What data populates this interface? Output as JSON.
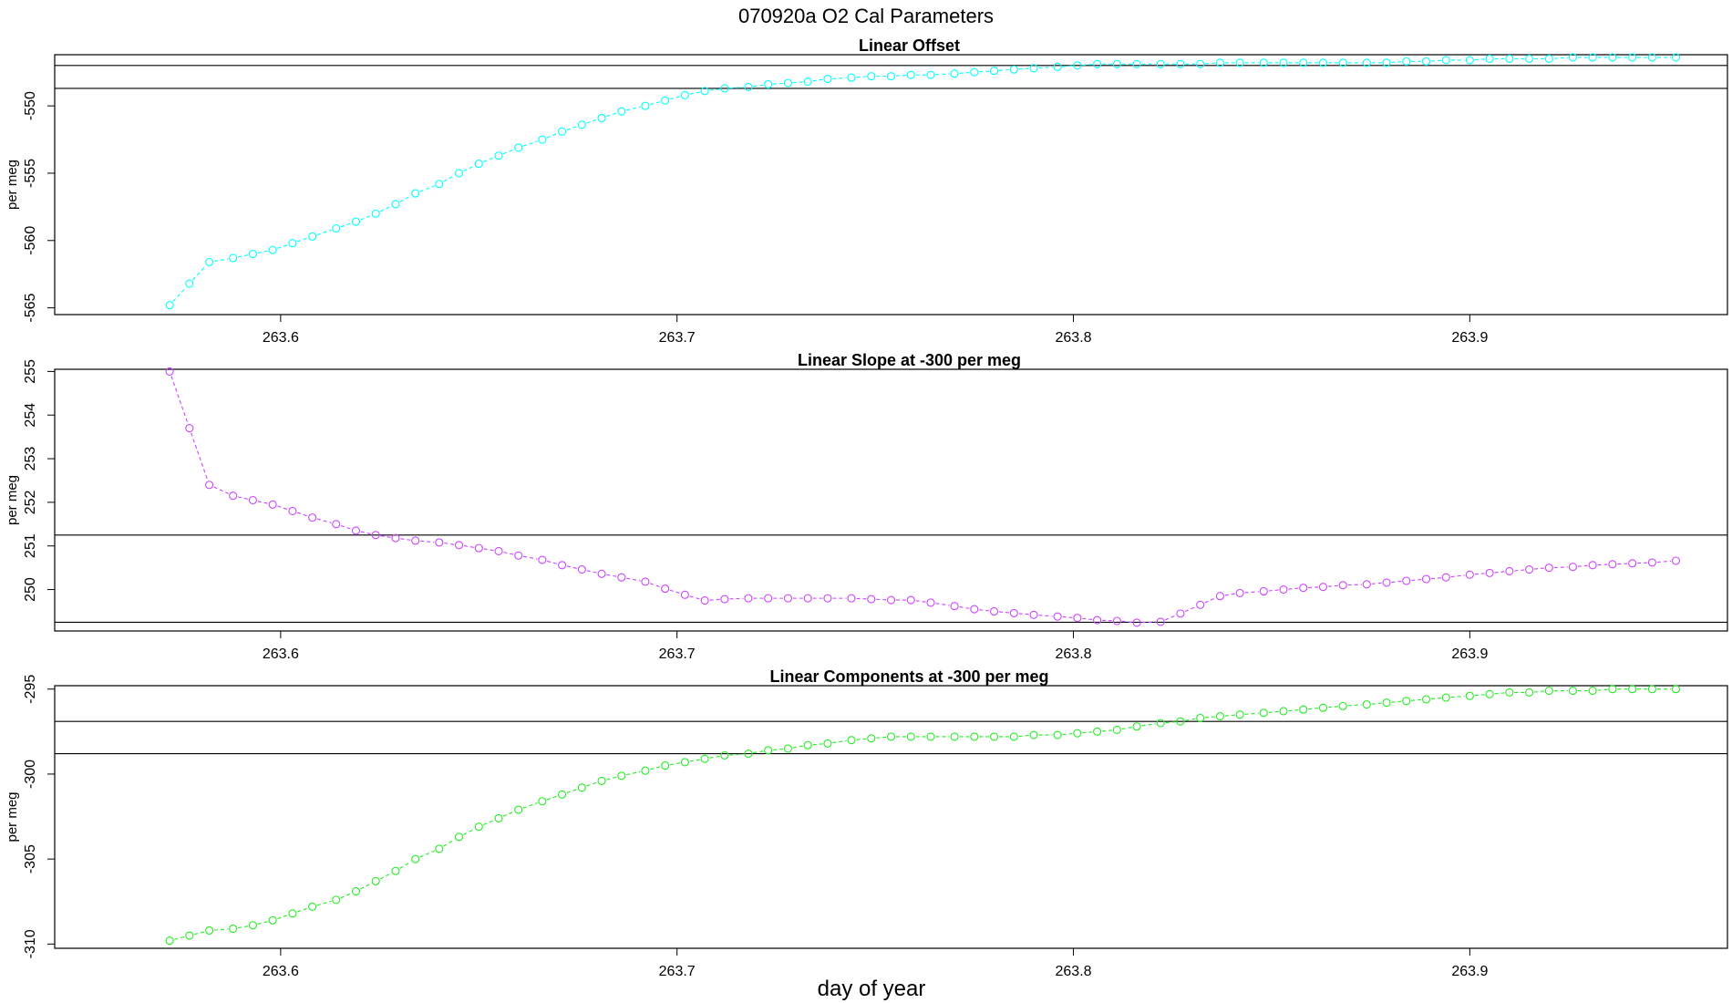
{
  "figure": {
    "title": "070920a   O2 Cal Parameters",
    "xlabel": "day of year"
  },
  "chart_data": [
    {
      "type": "line",
      "title": "Linear Offset",
      "ylabel": "per meg",
      "xlim": [
        263.543,
        263.965
      ],
      "ylim": [
        -565.5,
        -546.2
      ],
      "xticks": [
        "263.6",
        "263.7",
        "263.8",
        "263.9"
      ],
      "xtick_values": [
        263.6,
        263.7,
        263.8,
        263.9
      ],
      "yticks": [
        "-565",
        "-560",
        "-555",
        "-550"
      ],
      "ytick_values": [
        -565,
        -560,
        -555,
        -550
      ],
      "hlines": [
        -547.0,
        -548.7
      ],
      "color": "#00ffff",
      "x": [
        263.572,
        263.577,
        263.582,
        263.588,
        263.593,
        263.598,
        263.603,
        263.608,
        263.614,
        263.619,
        263.624,
        263.629,
        263.634,
        263.64,
        263.645,
        263.65,
        263.655,
        263.66,
        263.666,
        263.671,
        263.676,
        263.681,
        263.686,
        263.692,
        263.697,
        263.702,
        263.707,
        263.712,
        263.718,
        263.723,
        263.728,
        263.733,
        263.738,
        263.744,
        263.749,
        263.754,
        263.759,
        263.764,
        263.77,
        263.775,
        263.78,
        263.785,
        263.79,
        263.796,
        263.801,
        263.806,
        263.811,
        263.816,
        263.822,
        263.827,
        263.832,
        263.837,
        263.842,
        263.848,
        263.853,
        263.858,
        263.863,
        263.868,
        263.874,
        263.879,
        263.884,
        263.889,
        263.894,
        263.9,
        263.905,
        263.91,
        263.915,
        263.92,
        263.926,
        263.931,
        263.936,
        263.941,
        263.946,
        263.952
      ],
      "values": [
        -564.8,
        -563.2,
        -561.6,
        -561.3,
        -561.0,
        -560.7,
        -560.2,
        -559.7,
        -559.1,
        -558.6,
        -558.0,
        -557.3,
        -556.5,
        -555.8,
        -555.0,
        -554.3,
        -553.7,
        -553.1,
        -552.5,
        -551.9,
        -551.4,
        -550.9,
        -550.4,
        -550.0,
        -549.6,
        -549.2,
        -548.9,
        -548.7,
        -548.6,
        -548.4,
        -548.3,
        -548.2,
        -548.0,
        -547.9,
        -547.8,
        -547.8,
        -547.7,
        -547.7,
        -547.6,
        -547.5,
        -547.4,
        -547.3,
        -547.2,
        -547.1,
        -547.0,
        -546.9,
        -546.9,
        -546.9,
        -546.9,
        -546.9,
        -546.9,
        -546.8,
        -546.8,
        -546.8,
        -546.8,
        -546.8,
        -546.8,
        -546.8,
        -546.8,
        -546.8,
        -546.7,
        -546.7,
        -546.6,
        -546.6,
        -546.5,
        -546.5,
        -546.5,
        -546.5,
        -546.4,
        -546.4,
        -546.4,
        -546.4,
        -546.4,
        -546.4
      ]
    },
    {
      "type": "line",
      "title": "Linear Slope at -300 per meg",
      "ylabel": "per meg",
      "xlim": [
        263.543,
        263.965
      ],
      "ylim": [
        249.05,
        255.05
      ],
      "xticks": [
        "263.6",
        "263.7",
        "263.8",
        "263.9"
      ],
      "xtick_values": [
        263.6,
        263.7,
        263.8,
        263.9
      ],
      "yticks": [
        "250",
        "251",
        "252",
        "253",
        "254",
        "255"
      ],
      "ytick_values": [
        250,
        251,
        252,
        253,
        254,
        255
      ],
      "hlines": [
        251.25,
        249.25
      ],
      "color": "#cc44ff",
      "x": [
        263.572,
        263.577,
        263.582,
        263.588,
        263.593,
        263.598,
        263.603,
        263.608,
        263.614,
        263.619,
        263.624,
        263.629,
        263.634,
        263.64,
        263.645,
        263.65,
        263.655,
        263.66,
        263.666,
        263.671,
        263.676,
        263.681,
        263.686,
        263.692,
        263.697,
        263.702,
        263.707,
        263.712,
        263.718,
        263.723,
        263.728,
        263.733,
        263.738,
        263.744,
        263.749,
        263.754,
        263.759,
        263.764,
        263.77,
        263.775,
        263.78,
        263.785,
        263.79,
        263.796,
        263.801,
        263.806,
        263.811,
        263.816,
        263.822,
        263.827,
        263.832,
        263.837,
        263.842,
        263.848,
        263.853,
        263.858,
        263.863,
        263.868,
        263.874,
        263.879,
        263.884,
        263.889,
        263.894,
        263.9,
        263.905,
        263.91,
        263.915,
        263.92,
        263.926,
        263.931,
        263.936,
        263.941,
        263.946,
        263.952
      ],
      "values": [
        255.0,
        253.7,
        252.4,
        252.15,
        252.05,
        251.95,
        251.8,
        251.65,
        251.5,
        251.35,
        251.25,
        251.18,
        251.12,
        251.08,
        251.02,
        250.95,
        250.88,
        250.78,
        250.68,
        250.56,
        250.46,
        250.36,
        250.28,
        250.18,
        250.02,
        249.88,
        249.75,
        249.78,
        249.8,
        249.8,
        249.8,
        249.8,
        249.8,
        249.8,
        249.78,
        249.76,
        249.76,
        249.7,
        249.62,
        249.55,
        249.5,
        249.46,
        249.42,
        249.38,
        249.35,
        249.3,
        249.28,
        249.24,
        249.26,
        249.45,
        249.65,
        249.85,
        249.92,
        249.96,
        250.0,
        250.04,
        250.06,
        250.1,
        250.12,
        250.16,
        250.2,
        250.24,
        250.28,
        250.34,
        250.38,
        250.42,
        250.46,
        250.5,
        250.52,
        250.56,
        250.58,
        250.6,
        250.62,
        250.66
      ]
    },
    {
      "type": "line",
      "title": "Linear Components at -300 per meg",
      "ylabel": "per meg",
      "xlim": [
        263.543,
        263.965
      ],
      "ylim": [
        -310.25,
        -294.8
      ],
      "xticks": [
        "263.6",
        "263.7",
        "263.8",
        "263.9"
      ],
      "xtick_values": [
        263.6,
        263.7,
        263.8,
        263.9
      ],
      "yticks": [
        "-310",
        "-305",
        "-300",
        "-295"
      ],
      "ytick_values": [
        -310,
        -305,
        -300,
        -295
      ],
      "hlines": [
        -296.9,
        -298.8
      ],
      "color": "#22ee22",
      "x": [
        263.572,
        263.577,
        263.582,
        263.588,
        263.593,
        263.598,
        263.603,
        263.608,
        263.614,
        263.619,
        263.624,
        263.629,
        263.634,
        263.64,
        263.645,
        263.65,
        263.655,
        263.66,
        263.666,
        263.671,
        263.676,
        263.681,
        263.686,
        263.692,
        263.697,
        263.702,
        263.707,
        263.712,
        263.718,
        263.723,
        263.728,
        263.733,
        263.738,
        263.744,
        263.749,
        263.754,
        263.759,
        263.764,
        263.77,
        263.775,
        263.78,
        263.785,
        263.79,
        263.796,
        263.801,
        263.806,
        263.811,
        263.816,
        263.822,
        263.827,
        263.832,
        263.837,
        263.842,
        263.848,
        263.853,
        263.858,
        263.863,
        263.868,
        263.874,
        263.879,
        263.884,
        263.889,
        263.894,
        263.9,
        263.905,
        263.91,
        263.915,
        263.92,
        263.926,
        263.931,
        263.936,
        263.941,
        263.946,
        263.952
      ],
      "values": [
        -309.8,
        -309.5,
        -309.2,
        -309.1,
        -308.9,
        -308.6,
        -308.2,
        -307.8,
        -307.4,
        -306.9,
        -306.3,
        -305.7,
        -305.0,
        -304.4,
        -303.7,
        -303.1,
        -302.6,
        -302.1,
        -301.6,
        -301.2,
        -300.8,
        -300.4,
        -300.1,
        -299.8,
        -299.5,
        -299.3,
        -299.1,
        -298.9,
        -298.8,
        -298.6,
        -298.5,
        -298.3,
        -298.2,
        -298.0,
        -297.9,
        -297.8,
        -297.8,
        -297.8,
        -297.8,
        -297.8,
        -297.8,
        -297.8,
        -297.7,
        -297.7,
        -297.6,
        -297.5,
        -297.4,
        -297.2,
        -297.0,
        -296.9,
        -296.7,
        -296.6,
        -296.5,
        -296.4,
        -296.3,
        -296.2,
        -296.1,
        -296.0,
        -295.9,
        -295.8,
        -295.7,
        -295.6,
        -295.5,
        -295.4,
        -295.3,
        -295.2,
        -295.2,
        -295.1,
        -295.1,
        -295.1,
        -295.0,
        -295.0,
        -295.0,
        -295.0
      ]
    }
  ]
}
